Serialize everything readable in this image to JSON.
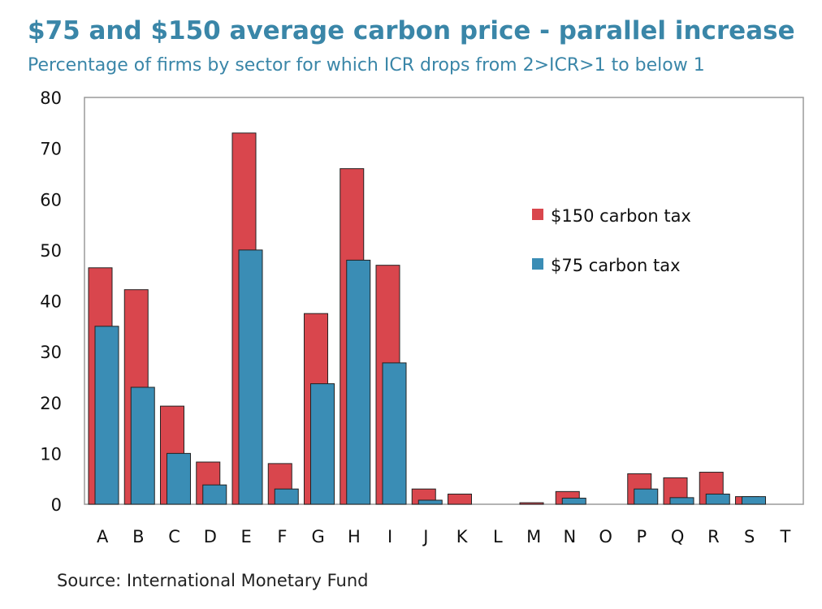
{
  "header": {
    "title": "$75 and $150 average carbon price - parallel increase",
    "subtitle": "Percentage of firms by sector for which ICR drops from 2>ICR>1 to below 1"
  },
  "footer": {
    "source": "Source: International Monetary Fund"
  },
  "colors": {
    "series_150": "#d9464d",
    "series_75": "#3a8db5",
    "axis": "#9a9a9a"
  },
  "chart_data": {
    "type": "bar",
    "title": "$75 and $150 average carbon price - parallel increase",
    "subtitle": "Percentage of firms by sector for which ICR drops from 2>ICR>1 to below 1",
    "xlabel": "",
    "ylabel": "",
    "ylim": [
      0,
      80
    ],
    "yticks": [
      0,
      10,
      20,
      30,
      40,
      50,
      60,
      70,
      80
    ],
    "grid": false,
    "legend_position": "right-middle",
    "categories": [
      "A",
      "B",
      "C",
      "D",
      "E",
      "F",
      "G",
      "H",
      "I",
      "J",
      "K",
      "L",
      "M",
      "N",
      "O",
      "P",
      "Q",
      "R",
      "S",
      "T"
    ],
    "series": [
      {
        "name": "$150 carbon tax",
        "color": "#d9464d",
        "values": [
          46.5,
          42.2,
          19.3,
          8.3,
          73.0,
          8.0,
          37.5,
          66.0,
          47.0,
          3.0,
          2.0,
          0,
          0.3,
          2.5,
          0,
          6.0,
          5.2,
          6.3,
          1.5,
          0
        ]
      },
      {
        "name": "$75 carbon tax",
        "color": "#3a8db5",
        "values": [
          35.0,
          23.0,
          10.0,
          3.8,
          50.0,
          3.0,
          23.7,
          48.0,
          27.8,
          0.8,
          0,
          0,
          0,
          1.2,
          0,
          3.0,
          1.3,
          2.0,
          1.5,
          0
        ]
      }
    ]
  }
}
